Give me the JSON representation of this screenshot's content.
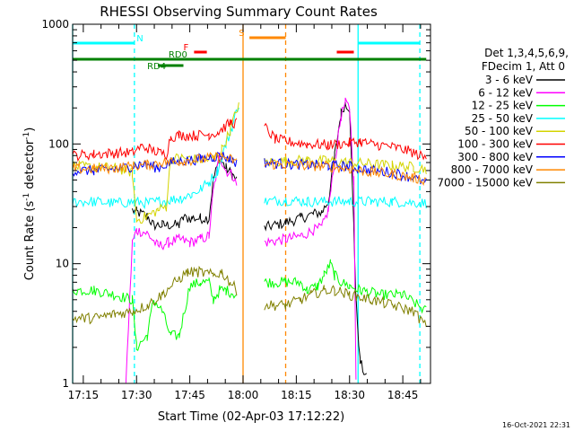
{
  "chart_data": {
    "type": "line",
    "title": "RHESSI Observing Summary Count Rates",
    "xlabel": "Start Time (02-Apr-03 17:12:22)",
    "ylabel_main": "Count Rate (s",
    "ylabel_sup1": "-1",
    "ylabel_mid": " detector",
    "ylabel_sup2": "-1",
    "ylabel_end": ")",
    "y_scale": "log",
    "ylim": [
      1,
      1000
    ],
    "xlim_minutes": [
      17.2,
      18.88
    ],
    "x_tick_labels": [
      "17:15",
      "17:30",
      "17:45",
      "18:00",
      "18:15",
      "18:30",
      "18:45"
    ],
    "y_tick_labels": [
      "1",
      "10",
      "100",
      "1000"
    ],
    "legend": {
      "placement": "right",
      "header1": "Det 1,3,4,5,6,9,",
      "header2": "FDecim 1, Att 0",
      "entries": [
        {
          "label": "3 - 6 keV",
          "color": "#000000"
        },
        {
          "label": "6 - 12 keV",
          "color": "#ff00ff"
        },
        {
          "label": "12 - 25 keV",
          "color": "#00ff00"
        },
        {
          "label": "25 - 50 keV",
          "color": "#00ffff"
        },
        {
          "label": "50 - 100 keV",
          "color": "#d4d400"
        },
        {
          "label": "100 - 300 keV",
          "color": "#ff0000"
        },
        {
          "label": "300 - 800 keV",
          "color": "#0000ff"
        },
        {
          "label": "800 - 7000 keV",
          "color": "#ff8800"
        },
        {
          "label": "7000 - 15000 keV",
          "color": "#808000"
        }
      ]
    },
    "flags": [
      {
        "name": "N",
        "color": "#00ffff",
        "x": [
          17.2,
          17.49
        ],
        "text_x": 17.5,
        "level": 1
      },
      {
        "name": "N",
        "color": "#00ffff",
        "x": [
          18.54,
          18.83
        ],
        "level": 1
      },
      {
        "name": "S",
        "color": "#ff8800",
        "x": [
          18.03,
          18.2
        ],
        "text_x": 17.98,
        "level": 0
      },
      {
        "name": "F",
        "color": "#ff0000",
        "x": [
          17.77,
          17.83
        ],
        "text_x": 17.72,
        "level": 2
      },
      {
        "name": "F",
        "color": "#ff0000",
        "x": [
          18.44,
          18.52
        ],
        "level": 2
      },
      {
        "name": "RD0",
        "color": "#008000",
        "x": [
          17.2,
          18.86
        ],
        "text_x": 17.65,
        "level": 3
      },
      {
        "name": "RD4",
        "color": "#008000",
        "x": [
          17.6,
          17.72
        ],
        "text_x": 17.55,
        "level": 4
      }
    ],
    "vertical_markers": [
      {
        "x": 17.2,
        "color": "#00ffff",
        "style": "solid"
      },
      {
        "x": 17.49,
        "color": "#00ffff",
        "style": "dashed"
      },
      {
        "x": 18.0,
        "color": "#ff8800",
        "style": "solid"
      },
      {
        "x": 18.2,
        "color": "#ff8800",
        "style": "dashed"
      },
      {
        "x": 18.54,
        "color": "#00ffff",
        "style": "solid"
      },
      {
        "x": 18.83,
        "color": "#00ffff",
        "style": "dashed"
      }
    ],
    "gaps": [
      [
        17.98,
        18.1
      ]
    ],
    "series": [
      {
        "name": "3 - 6 keV",
        "color": "#000000",
        "points": [
          [
            17.2,
            null
          ],
          [
            17.48,
            28
          ],
          [
            17.5,
            27
          ],
          [
            17.55,
            25
          ],
          [
            17.58,
            21
          ],
          [
            17.62,
            21
          ],
          [
            17.7,
            21
          ],
          [
            17.72,
            24
          ],
          [
            17.76,
            24
          ],
          [
            17.8,
            24
          ],
          [
            17.84,
            24
          ],
          [
            17.86,
            50
          ],
          [
            17.89,
            75
          ],
          [
            17.92,
            63
          ],
          [
            17.95,
            55
          ],
          [
            17.97,
            50
          ],
          [
            18.1,
            null
          ],
          [
            18.1,
            20
          ],
          [
            18.2,
            22
          ],
          [
            18.27,
            24
          ],
          [
            18.33,
            26
          ],
          [
            18.37,
            27
          ],
          [
            18.4,
            33
          ],
          [
            18.43,
            80
          ],
          [
            18.46,
            180
          ],
          [
            18.48,
            220
          ],
          [
            18.5,
            200
          ],
          [
            18.52,
            20
          ],
          [
            18.53,
            5
          ],
          [
            18.55,
            1.5
          ],
          [
            18.58,
            1.1
          ]
        ]
      },
      {
        "name": "6 - 12 keV",
        "color": "#ff00ff",
        "points": [
          [
            17.2,
            null
          ],
          [
            17.45,
            1
          ],
          [
            17.48,
            15
          ],
          [
            17.5,
            19
          ],
          [
            17.55,
            18
          ],
          [
            17.6,
            14
          ],
          [
            17.65,
            15
          ],
          [
            17.7,
            16
          ],
          [
            17.75,
            15
          ],
          [
            17.8,
            16
          ],
          [
            17.84,
            17
          ],
          [
            17.86,
            40
          ],
          [
            17.89,
            80
          ],
          [
            17.92,
            60
          ],
          [
            17.95,
            55
          ],
          [
            17.97,
            45
          ],
          [
            18.1,
            null
          ],
          [
            18.1,
            15
          ],
          [
            18.2,
            16
          ],
          [
            18.27,
            17
          ],
          [
            18.33,
            19
          ],
          [
            18.37,
            20
          ],
          [
            18.4,
            28
          ],
          [
            18.43,
            70
          ],
          [
            18.46,
            170
          ],
          [
            18.48,
            220
          ],
          [
            18.5,
            200
          ],
          [
            18.52,
            50
          ],
          [
            18.53,
            1
          ]
        ]
      },
      {
        "name": "12 - 25 keV",
        "color": "#00ff00",
        "points": [
          [
            17.2,
            6
          ],
          [
            17.3,
            6
          ],
          [
            17.4,
            5.5
          ],
          [
            17.48,
            5
          ],
          [
            17.5,
            2
          ],
          [
            17.55,
            2.5
          ],
          [
            17.58,
            5
          ],
          [
            17.62,
            4
          ],
          [
            17.66,
            2.5
          ],
          [
            17.7,
            2.5
          ],
          [
            17.75,
            6.5
          ],
          [
            17.8,
            7
          ],
          [
            17.84,
            7
          ],
          [
            17.86,
            5
          ],
          [
            17.89,
            6
          ],
          [
            17.92,
            6
          ],
          [
            17.97,
            5.5
          ],
          [
            18.1,
            null
          ],
          [
            18.1,
            7
          ],
          [
            18.2,
            7
          ],
          [
            18.27,
            7
          ],
          [
            18.3,
            6
          ],
          [
            18.35,
            6.5
          ],
          [
            18.38,
            8
          ],
          [
            18.41,
            10
          ],
          [
            18.43,
            8
          ],
          [
            18.46,
            7
          ],
          [
            18.5,
            6.5
          ],
          [
            18.55,
            6
          ],
          [
            18.65,
            5.5
          ],
          [
            18.75,
            5.5
          ],
          [
            18.86,
            4
          ]
        ]
      },
      {
        "name": "25 - 50 keV",
        "color": "#00ffff",
        "points": [
          [
            17.2,
            33
          ],
          [
            17.3,
            33
          ],
          [
            17.4,
            32
          ],
          [
            17.5,
            33
          ],
          [
            17.55,
            32
          ],
          [
            17.6,
            33
          ],
          [
            17.7,
            35
          ],
          [
            17.76,
            38
          ],
          [
            17.8,
            42
          ],
          [
            17.84,
            48
          ],
          [
            17.88,
            60
          ],
          [
            17.92,
            100
          ],
          [
            17.95,
            140
          ],
          [
            17.98,
            220
          ],
          [
            18.1,
            null
          ],
          [
            18.1,
            33
          ],
          [
            18.2,
            34
          ],
          [
            18.3,
            33
          ],
          [
            18.4,
            33
          ],
          [
            18.5,
            33
          ],
          [
            18.6,
            33
          ],
          [
            18.7,
            33
          ],
          [
            18.86,
            32
          ]
        ]
      },
      {
        "name": "50 - 100 keV",
        "color": "#d4d400",
        "points": [
          [
            17.2,
            65
          ],
          [
            17.3,
            64
          ],
          [
            17.4,
            63
          ],
          [
            17.48,
            58
          ],
          [
            17.5,
            23
          ],
          [
            17.55,
            25
          ],
          [
            17.6,
            28
          ],
          [
            17.64,
            30
          ],
          [
            17.66,
            75
          ],
          [
            17.7,
            76
          ],
          [
            17.76,
            75
          ],
          [
            17.82,
            74
          ],
          [
            17.86,
            75
          ],
          [
            17.9,
            90
          ],
          [
            17.94,
            130
          ],
          [
            17.98,
            220
          ],
          [
            18.1,
            null
          ],
          [
            18.1,
            70
          ],
          [
            18.2,
            72
          ],
          [
            18.3,
            73
          ],
          [
            18.4,
            72
          ],
          [
            18.5,
            70
          ],
          [
            18.6,
            68
          ],
          [
            18.7,
            66
          ],
          [
            18.8,
            64
          ],
          [
            18.86,
            62
          ]
        ]
      },
      {
        "name": "100 - 300 keV",
        "color": "#ff0000",
        "points": [
          [
            17.2,
            80
          ],
          [
            17.3,
            82
          ],
          [
            17.4,
            84
          ],
          [
            17.48,
            85
          ],
          [
            17.52,
            95
          ],
          [
            17.56,
            92
          ],
          [
            17.6,
            85
          ],
          [
            17.64,
            82
          ],
          [
            17.66,
            115
          ],
          [
            17.7,
            118
          ],
          [
            17.78,
            118
          ],
          [
            17.84,
            120
          ],
          [
            17.88,
            125
          ],
          [
            17.94,
            150
          ],
          [
            17.97,
            150
          ],
          [
            18.1,
            null
          ],
          [
            18.1,
            140
          ],
          [
            18.15,
            110
          ],
          [
            18.2,
            105
          ],
          [
            18.3,
            100
          ],
          [
            18.4,
            98
          ],
          [
            18.5,
            102
          ],
          [
            18.55,
            105
          ],
          [
            18.6,
            100
          ],
          [
            18.7,
            95
          ],
          [
            18.8,
            85
          ],
          [
            18.86,
            75
          ]
        ]
      },
      {
        "name": "300 - 800 keV",
        "color": "#0000ff",
        "points": [
          [
            17.2,
            60
          ],
          [
            17.3,
            60
          ],
          [
            17.4,
            62
          ],
          [
            17.48,
            65
          ],
          [
            17.52,
            68
          ],
          [
            17.56,
            66
          ],
          [
            17.6,
            63
          ],
          [
            17.66,
            70
          ],
          [
            17.72,
            72
          ],
          [
            17.8,
            75
          ],
          [
            17.86,
            78
          ],
          [
            17.9,
            80
          ],
          [
            17.94,
            75
          ],
          [
            17.97,
            70
          ],
          [
            18.1,
            null
          ],
          [
            18.1,
            70
          ],
          [
            18.2,
            68
          ],
          [
            18.3,
            67
          ],
          [
            18.4,
            66
          ],
          [
            18.5,
            65
          ],
          [
            18.6,
            60
          ],
          [
            18.7,
            58
          ],
          [
            18.8,
            52
          ],
          [
            18.86,
            47
          ]
        ]
      },
      {
        "name": "800 - 7000 keV",
        "color": "#ff8800",
        "points": [
          [
            17.2,
            62
          ],
          [
            17.3,
            62
          ],
          [
            17.4,
            63
          ],
          [
            17.48,
            65
          ],
          [
            17.55,
            67
          ],
          [
            17.62,
            70
          ],
          [
            17.7,
            72
          ],
          [
            17.78,
            74
          ],
          [
            17.84,
            76
          ],
          [
            17.9,
            78
          ],
          [
            17.94,
            75
          ],
          [
            17.97,
            70
          ],
          [
            18.1,
            null
          ],
          [
            18.1,
            68
          ],
          [
            18.2,
            67
          ],
          [
            18.3,
            66
          ],
          [
            18.4,
            65
          ],
          [
            18.5,
            62
          ],
          [
            18.6,
            58
          ],
          [
            18.7,
            56
          ],
          [
            18.8,
            52
          ],
          [
            18.86,
            50
          ]
        ]
      },
      {
        "name": "7000 - 15000 keV",
        "color": "#808000",
        "points": [
          [
            17.2,
            3.5
          ],
          [
            17.3,
            3.5
          ],
          [
            17.4,
            3.8
          ],
          [
            17.48,
            4
          ],
          [
            17.55,
            4.5
          ],
          [
            17.62,
            5.5
          ],
          [
            17.68,
            7
          ],
          [
            17.74,
            8.5
          ],
          [
            17.8,
            8.5
          ],
          [
            17.86,
            8
          ],
          [
            17.9,
            8.5
          ],
          [
            17.94,
            7
          ],
          [
            17.97,
            6
          ],
          [
            18.1,
            null
          ],
          [
            18.1,
            4.5
          ],
          [
            18.2,
            4.5
          ],
          [
            18.27,
            5
          ],
          [
            18.32,
            5.5
          ],
          [
            18.38,
            6
          ],
          [
            18.43,
            6
          ],
          [
            18.5,
            5.5
          ],
          [
            18.6,
            5
          ],
          [
            18.7,
            4.5
          ],
          [
            18.8,
            4
          ],
          [
            18.86,
            3
          ]
        ]
      }
    ]
  },
  "footer": {
    "date_stamp": "16-Oct-2021 22:31"
  }
}
